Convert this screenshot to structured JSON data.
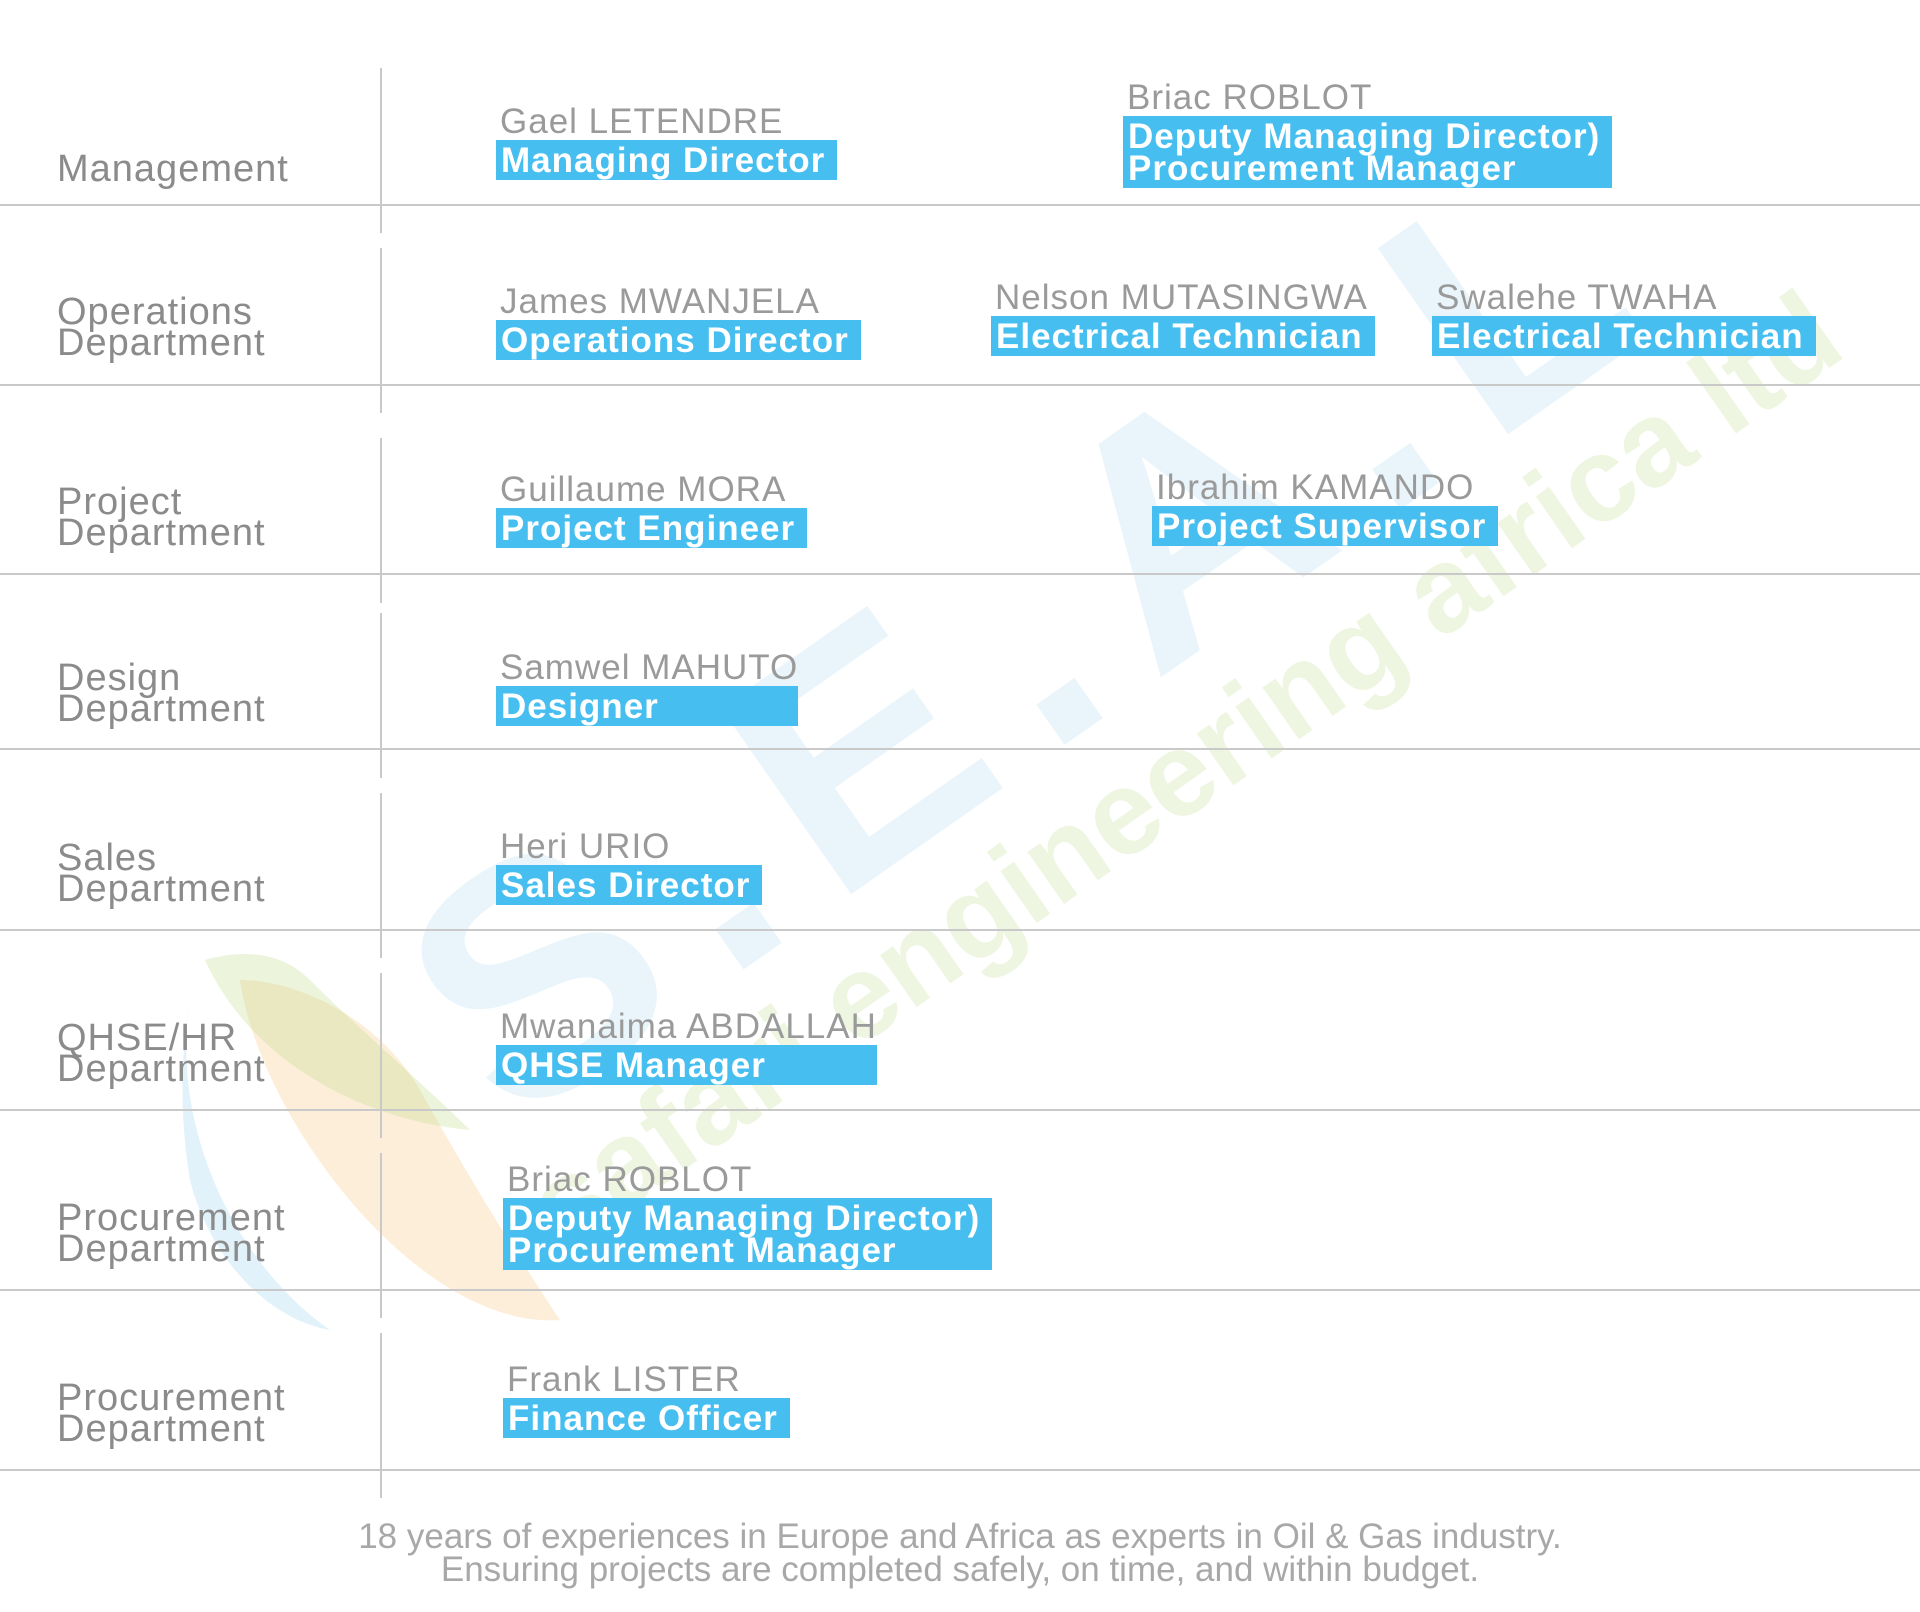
{
  "watermark": {
    "logo_text": "S.E.A.L",
    "tagline": "safari engineering africa ltd",
    "colors": {
      "blue": "#8ccbea",
      "green": "#bfdc8a",
      "orange": "#f7c277"
    }
  },
  "rows": [
    {
      "department": [
        "Management"
      ],
      "people": [
        {
          "name": "Gael LETENDRE",
          "role": [
            "Managing Director"
          ]
        },
        {
          "name": "Briac ROBLOT",
          "role": [
            "Deputy Managing Director)",
            "Procurement Manager"
          ]
        }
      ]
    },
    {
      "department": [
        "Operations",
        "Department"
      ],
      "people": [
        {
          "name": "James MWANJELA",
          "role": [
            "Operations Director"
          ]
        },
        {
          "name": "Nelson MUTASINGWA",
          "role": [
            "Electrical Technician"
          ]
        },
        {
          "name": "Swalehe TWAHA",
          "role": [
            "Electrical Technician"
          ]
        }
      ]
    },
    {
      "department": [
        "Project",
        "Department"
      ],
      "people": [
        {
          "name": "Guillaume MORA",
          "role": [
            "Project Engineer"
          ]
        },
        {
          "name": "Ibrahim KAMANDO",
          "role": [
            "Project Supervisor"
          ]
        }
      ]
    },
    {
      "department": [
        "Design",
        "Department"
      ],
      "people": [
        {
          "name": "Samwel MAHUTO",
          "role": [
            "Designer"
          ]
        }
      ]
    },
    {
      "department": [
        "Sales",
        "Department"
      ],
      "people": [
        {
          "name": "Heri URIO",
          "role": [
            "Sales Director"
          ]
        }
      ]
    },
    {
      "department": [
        "QHSE/HR",
        "Department"
      ],
      "people": [
        {
          "name": "Mwanaima ABDALLAH",
          "role": [
            "QHSE Manager"
          ]
        }
      ]
    },
    {
      "department": [
        "Procurement",
        "Department"
      ],
      "people": [
        {
          "name": "Briac ROBLOT",
          "role": [
            "Deputy Managing Director)",
            "Procurement Manager"
          ]
        }
      ]
    },
    {
      "department": [
        "Procurement",
        "Department"
      ],
      "people": [
        {
          "name": "Frank LISTER",
          "role": [
            "Finance Officer"
          ]
        }
      ]
    }
  ],
  "footer": [
    "18 years of experiences in Europe and Africa as experts in Oil & Gas industry.",
    "Ensuring projects are completed safely, on time, and within budget."
  ]
}
